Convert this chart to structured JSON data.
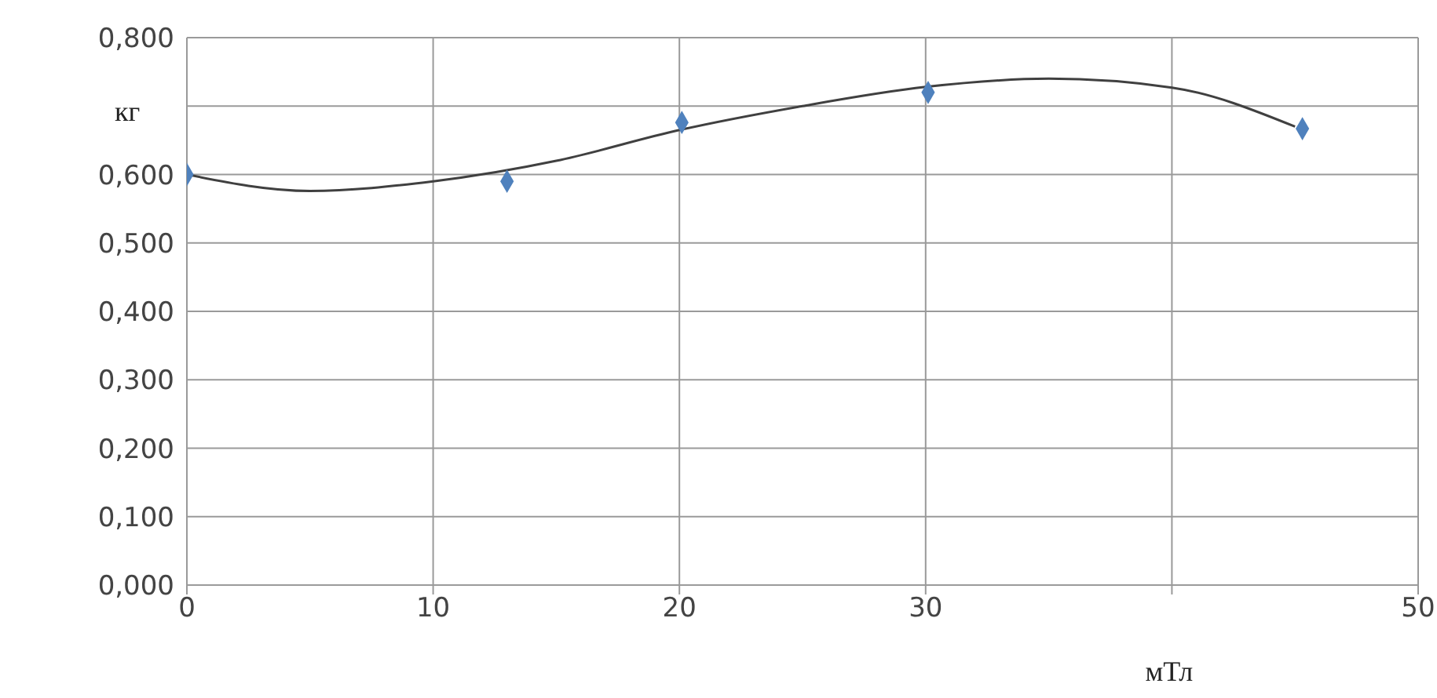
{
  "chart_data": {
    "type": "scatter",
    "xlabel": "мТл",
    "ylabel": "кг",
    "xlim": [
      0,
      50
    ],
    "xticks": [
      0,
      10,
      20,
      30,
      {
        "value": 40,
        "label": null
      },
      50
    ],
    "ylim": [
      0,
      0.8
    ],
    "yticks": [
      {
        "value": 0,
        "label": "0,000"
      },
      {
        "value": 0.1,
        "label": "0,100"
      },
      {
        "value": 0.2,
        "label": "0,200"
      },
      {
        "value": 0.3,
        "label": "0,300"
      },
      {
        "value": 0.4,
        "label": "0,400"
      },
      {
        "value": 0.5,
        "label": "0,500"
      },
      {
        "value": 0.6,
        "label": "0,600"
      },
      {
        "value": 0.7,
        "label": null
      },
      {
        "value": 0.8,
        "label": "0,800"
      }
    ],
    "grid": true,
    "series": [
      {
        "color": "#4f81bd",
        "marker": "diamond",
        "x": [
          0,
          13,
          20.1,
          30.1,
          45.3
        ],
        "values": [
          0.6,
          0.59,
          0.676,
          0.72,
          0.667
        ]
      },
      {
        "type": "line",
        "color": "#404040",
        "marker": "none",
        "x": [
          0,
          5,
          10,
          15,
          20,
          25,
          30,
          35,
          40,
          45
        ],
        "values": [
          0.6,
          0.576,
          0.59,
          0.62,
          0.665,
          0.7,
          0.728,
          0.74,
          0.727,
          0.67
        ]
      }
    ]
  }
}
